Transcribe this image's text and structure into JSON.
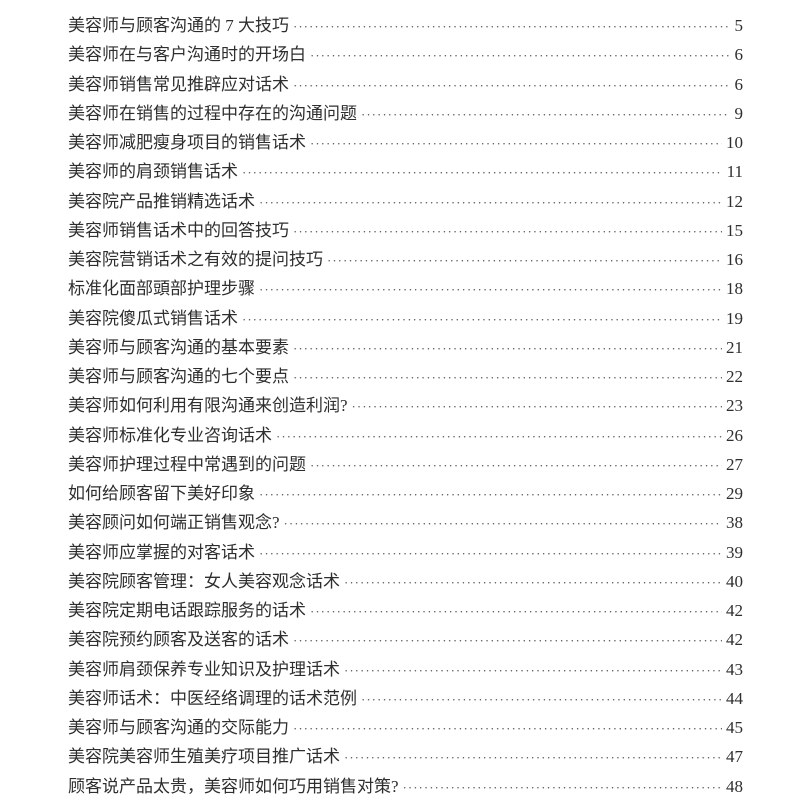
{
  "toc": [
    {
      "title": "美容师与顾客沟通的 7 大技巧",
      "page": "5"
    },
    {
      "title": "美容师在与客户沟通时的开场白",
      "page": "6"
    },
    {
      "title": "美容师销售常见推辟应对话术",
      "page": "6"
    },
    {
      "title": "美容师在销售的过程中存在的沟通问题",
      "page": "9"
    },
    {
      "title": "美容师减肥瘦身项目的销售话术",
      "page": "10"
    },
    {
      "title": "美容师的肩颈销售话术",
      "page": "11"
    },
    {
      "title": "美容院产品推销精选话术",
      "page": "12"
    },
    {
      "title": "美容师销售话术中的回答技巧",
      "page": "15"
    },
    {
      "title": "美容院营销话术之有效的提问技巧",
      "page": "16"
    },
    {
      "title": "标准化面部頭部护理步骤",
      "page": "18"
    },
    {
      "title": "美容院傻瓜式销售话术",
      "page": "19"
    },
    {
      "title": "美容师与顾客沟通的基本要素",
      "page": "21"
    },
    {
      "title": "美容师与顾客沟通的七个要点",
      "page": "22"
    },
    {
      "title": "美容师如何利用有限沟通来创造利润?",
      "page": "23"
    },
    {
      "title": "美容师标准化专业咨询话术",
      "page": "26"
    },
    {
      "title": "美容师护理过程中常遇到的问题",
      "page": "27"
    },
    {
      "title": "如何给顾客留下美好印象",
      "page": "29"
    },
    {
      "title": "美容顾问如何端正销售观念?",
      "page": "38"
    },
    {
      "title": "美容师应掌握的对客话术",
      "page": "39"
    },
    {
      "title": "美容院顾客管理：女人美容观念话术",
      "page": "40"
    },
    {
      "title": "美容院定期电话跟踪服务的话术",
      "page": "42"
    },
    {
      "title": "美容院预约顾客及送客的话术",
      "page": "42"
    },
    {
      "title": "美容师肩颈保养专业知识及护理话术",
      "page": "43"
    },
    {
      "title": "美容师话术：中医经络调理的话术范例",
      "page": "44"
    },
    {
      "title": "美容师与顾客沟通的交际能力",
      "page": "45"
    },
    {
      "title": "美容院美容师生殖美疗项目推广话术",
      "page": "47"
    },
    {
      "title": "顾客说产品太贵，美容师如何巧用销售对策?",
      "page": "48"
    }
  ]
}
